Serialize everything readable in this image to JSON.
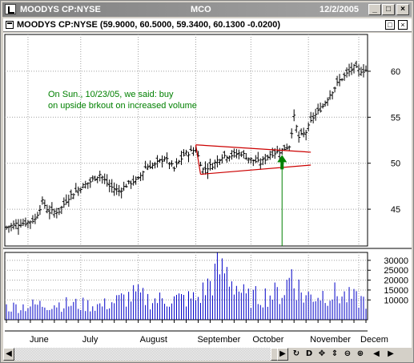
{
  "window": {
    "title_name": "MOODYS CP:NYSE",
    "title_symbol": "MCO",
    "title_date": "12/2/2005",
    "minimize": "_",
    "maximize": "□",
    "close": "×"
  },
  "subheader": {
    "text": "MOODYS CP:NYSE (59.9000, 60.5000, 59.3400, 60.1300 -0.0200)",
    "btn_restore": "□",
    "btn_close": "×"
  },
  "toolbar": {
    "left_arrow": "◀",
    "right_arrow": "▶",
    "icons": [
      "↻",
      "D",
      "✥",
      "⇕",
      "⊖",
      "⊕",
      "◀",
      "▶"
    ]
  },
  "colors": {
    "price_bar": "#000000",
    "volume_bar": "#0000c8",
    "triangle": "#cc0000",
    "annotation": "#008000",
    "arrow": "#008000",
    "grid": "#a0a0a0"
  },
  "chart_data": {
    "type": "ohlc_with_volume",
    "annotation": "On Sun., 10/23/05, we said: buy on upside brkout on increased volume",
    "price_axis": {
      "ticks": [
        45,
        50,
        55,
        60
      ],
      "ylim": [
        41,
        64
      ]
    },
    "volume_axis": {
      "ticks": [
        "10000",
        "15000",
        "20000",
        "25000",
        "30000"
      ],
      "ylim": [
        0,
        34000
      ]
    },
    "months": [
      "June",
      "July",
      "August",
      "September",
      "October",
      "November",
      "Decem"
    ],
    "month_positions": [
      9,
      31,
      55,
      79,
      102,
      126,
      147
    ],
    "trendline_upper": {
      "from": [
        79,
        52.0
      ],
      "to": [
        127,
        51.2
      ]
    },
    "trendline_lower": {
      "from": [
        81,
        48.8
      ],
      "to": [
        127,
        49.8
      ]
    },
    "breakout_arrow": {
      "x": 115,
      "price": 50.2
    },
    "num_bars": 151,
    "close_anchors": [
      [
        0,
        43.0
      ],
      [
        4,
        43.4
      ],
      [
        8,
        43.5
      ],
      [
        12,
        43.9
      ],
      [
        15,
        45.8
      ],
      [
        18,
        44.7
      ],
      [
        22,
        44.8
      ],
      [
        26,
        46.3
      ],
      [
        30,
        47.2
      ],
      [
        35,
        48.0
      ],
      [
        39,
        48.8
      ],
      [
        43,
        47.5
      ],
      [
        47,
        47.0
      ],
      [
        51,
        47.8
      ],
      [
        55,
        48.2
      ],
      [
        58,
        49.6
      ],
      [
        62,
        49.8
      ],
      [
        66,
        50.6
      ],
      [
        70,
        49.4
      ],
      [
        74,
        50.9
      ],
      [
        79,
        51.5
      ],
      [
        82,
        49.3
      ],
      [
        86,
        49.8
      ],
      [
        90,
        50.8
      ],
      [
        94,
        50.9
      ],
      [
        98,
        51.1
      ],
      [
        102,
        50.4
      ],
      [
        106,
        50.0
      ],
      [
        110,
        51.0
      ],
      [
        114,
        51.3
      ],
      [
        118,
        51.9
      ],
      [
        120,
        55.0
      ],
      [
        122,
        52.8
      ],
      [
        125,
        53.4
      ],
      [
        128,
        55.0
      ],
      [
        132,
        56.2
      ],
      [
        135,
        57.5
      ],
      [
        139,
        59.0
      ],
      [
        142,
        59.7
      ],
      [
        145,
        60.4
      ],
      [
        147,
        60.1
      ]
    ],
    "volume_anchors": [
      [
        0,
        7000
      ],
      [
        20,
        9000
      ],
      [
        40,
        8000
      ],
      [
        54,
        14000
      ],
      [
        60,
        11000
      ],
      [
        80,
        12000
      ],
      [
        90,
        30000
      ],
      [
        100,
        12000
      ],
      [
        115,
        15000
      ],
      [
        119,
        25000
      ],
      [
        124,
        13000
      ],
      [
        135,
        15000
      ],
      [
        147,
        11000
      ]
    ]
  }
}
